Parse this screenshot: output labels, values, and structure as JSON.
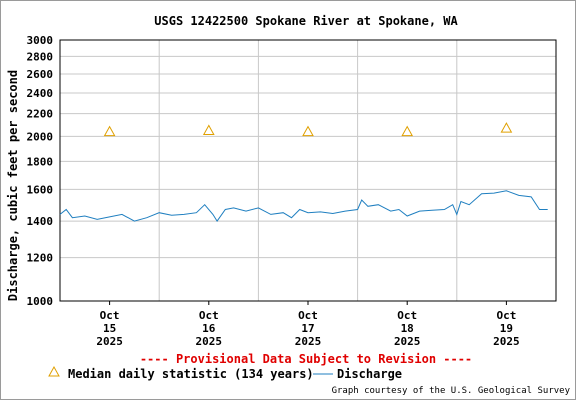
{
  "chart_data": {
    "type": "line",
    "title": "USGS 12422500 Spokane River at Spokane, WA",
    "ylabel": "Discharge, cubic feet per second",
    "xlabel": "",
    "yscale": "log",
    "ylim": [
      1000,
      3000
    ],
    "yticks": [
      1000,
      1200,
      1400,
      1600,
      1800,
      2000,
      2200,
      2400,
      2600,
      2800,
      3000
    ],
    "ytick_labels": [
      "1000",
      "1200",
      "1400",
      "1600",
      "1800",
      "2000",
      "2200",
      "2400",
      "2600",
      "2800",
      "3000"
    ],
    "grid": true,
    "x_start": "2025-10-14T12:00",
    "x_end": "2025-10-19T12:00",
    "x_ticks": [
      {
        "at": "2025-10-15T00:00",
        "line1": "Oct",
        "line2": "15",
        "line3": "2025"
      },
      {
        "at": "2025-10-16T00:00",
        "line1": "Oct",
        "line2": "16",
        "line3": "2025"
      },
      {
        "at": "2025-10-17T00:00",
        "line1": "Oct",
        "line2": "17",
        "line3": "2025"
      },
      {
        "at": "2025-10-18T00:00",
        "line1": "Oct",
        "line2": "18",
        "line3": "2025"
      },
      {
        "at": "2025-10-19T00:00",
        "line1": "Oct",
        "line2": "19",
        "line3": "2025"
      }
    ],
    "day_boundaries": [
      "2025-10-15T12:00",
      "2025-10-16T12:00",
      "2025-10-17T12:00",
      "2025-10-18T12:00"
    ],
    "series": [
      {
        "name": "Discharge",
        "color": "#1f7fc0",
        "points": [
          [
            "2025-10-14T12:00",
            1440
          ],
          [
            "2025-10-14T13:30",
            1470
          ],
          [
            "2025-10-14T15:00",
            1420
          ],
          [
            "2025-10-14T18:00",
            1430
          ],
          [
            "2025-10-14T21:00",
            1410
          ],
          [
            "2025-10-15T00:00",
            1425
          ],
          [
            "2025-10-15T03:00",
            1440
          ],
          [
            "2025-10-15T06:00",
            1400
          ],
          [
            "2025-10-15T09:00",
            1420
          ],
          [
            "2025-10-15T12:00",
            1450
          ],
          [
            "2025-10-15T15:00",
            1435
          ],
          [
            "2025-10-15T18:00",
            1440
          ],
          [
            "2025-10-15T21:00",
            1450
          ],
          [
            "2025-10-15T23:00",
            1500
          ],
          [
            "2025-10-16T01:00",
            1440
          ],
          [
            "2025-10-16T02:00",
            1400
          ],
          [
            "2025-10-16T04:00",
            1470
          ],
          [
            "2025-10-16T06:00",
            1480
          ],
          [
            "2025-10-16T09:00",
            1460
          ],
          [
            "2025-10-16T12:00",
            1480
          ],
          [
            "2025-10-16T15:00",
            1440
          ],
          [
            "2025-10-16T18:00",
            1450
          ],
          [
            "2025-10-16T20:00",
            1420
          ],
          [
            "2025-10-16T22:00",
            1470
          ],
          [
            "2025-10-17T00:00",
            1450
          ],
          [
            "2025-10-17T03:00",
            1455
          ],
          [
            "2025-10-17T06:00",
            1445
          ],
          [
            "2025-10-17T09:00",
            1460
          ],
          [
            "2025-10-17T12:00",
            1470
          ],
          [
            "2025-10-17T13:00",
            1530
          ],
          [
            "2025-10-17T14:30",
            1490
          ],
          [
            "2025-10-17T17:00",
            1500
          ],
          [
            "2025-10-17T20:00",
            1460
          ],
          [
            "2025-10-17T22:00",
            1470
          ],
          [
            "2025-10-18T00:00",
            1430
          ],
          [
            "2025-10-18T03:00",
            1460
          ],
          [
            "2025-10-18T06:00",
            1465
          ],
          [
            "2025-10-18T09:00",
            1470
          ],
          [
            "2025-10-18T11:00",
            1500
          ],
          [
            "2025-10-18T12:00",
            1440
          ],
          [
            "2025-10-18T13:00",
            1520
          ],
          [
            "2025-10-18T15:00",
            1500
          ],
          [
            "2025-10-18T18:00",
            1570
          ],
          [
            "2025-10-18T21:00",
            1575
          ],
          [
            "2025-10-19T00:00",
            1590
          ],
          [
            "2025-10-19T03:00",
            1560
          ],
          [
            "2025-10-19T06:00",
            1550
          ],
          [
            "2025-10-19T08:00",
            1470
          ],
          [
            "2025-10-19T10:00",
            1470
          ]
        ]
      }
    ],
    "median_points": [
      {
        "x": "2025-10-15T00:00",
        "y": 2040
      },
      {
        "x": "2025-10-16T00:00",
        "y": 2050
      },
      {
        "x": "2025-10-17T00:00",
        "y": 2040
      },
      {
        "x": "2025-10-18T00:00",
        "y": 2040
      },
      {
        "x": "2025-10-19T00:00",
        "y": 2070
      }
    ],
    "median_color": "#e0a000",
    "provisional_text": "---- Provisional Data Subject to Revision ----",
    "legend": {
      "median_label": "Median daily statistic (134 years)",
      "discharge_label": "Discharge"
    },
    "credit": "Graph courtesy of the U.S. Geological Survey"
  }
}
